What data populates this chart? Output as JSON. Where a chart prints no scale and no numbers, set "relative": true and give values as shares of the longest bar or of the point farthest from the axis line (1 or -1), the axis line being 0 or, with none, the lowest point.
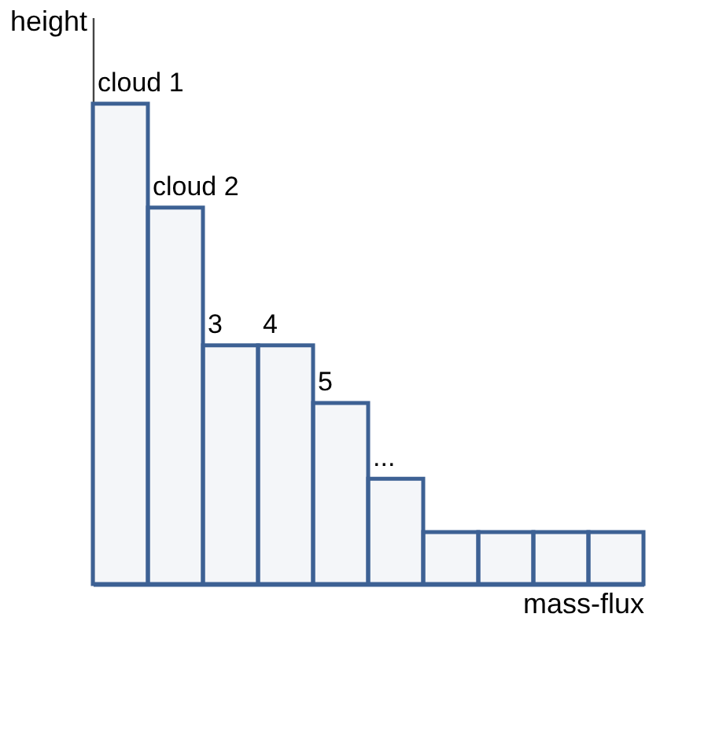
{
  "chart_data": {
    "type": "bar",
    "relative": true,
    "xlabel": "mass-flux",
    "ylabel": "height",
    "categories": [
      null,
      null,
      null,
      null,
      null,
      null,
      null,
      null,
      null,
      null
    ],
    "annotations": [
      "cloud 1",
      "cloud 2",
      "3",
      "4",
      "5",
      "..."
    ],
    "values": [
      1,
      0.784,
      0.497,
      0.497,
      0.377,
      0.219,
      0.108,
      0.108,
      0.108,
      0.108
    ],
    "color": "#3d6194",
    "grid": false
  }
}
